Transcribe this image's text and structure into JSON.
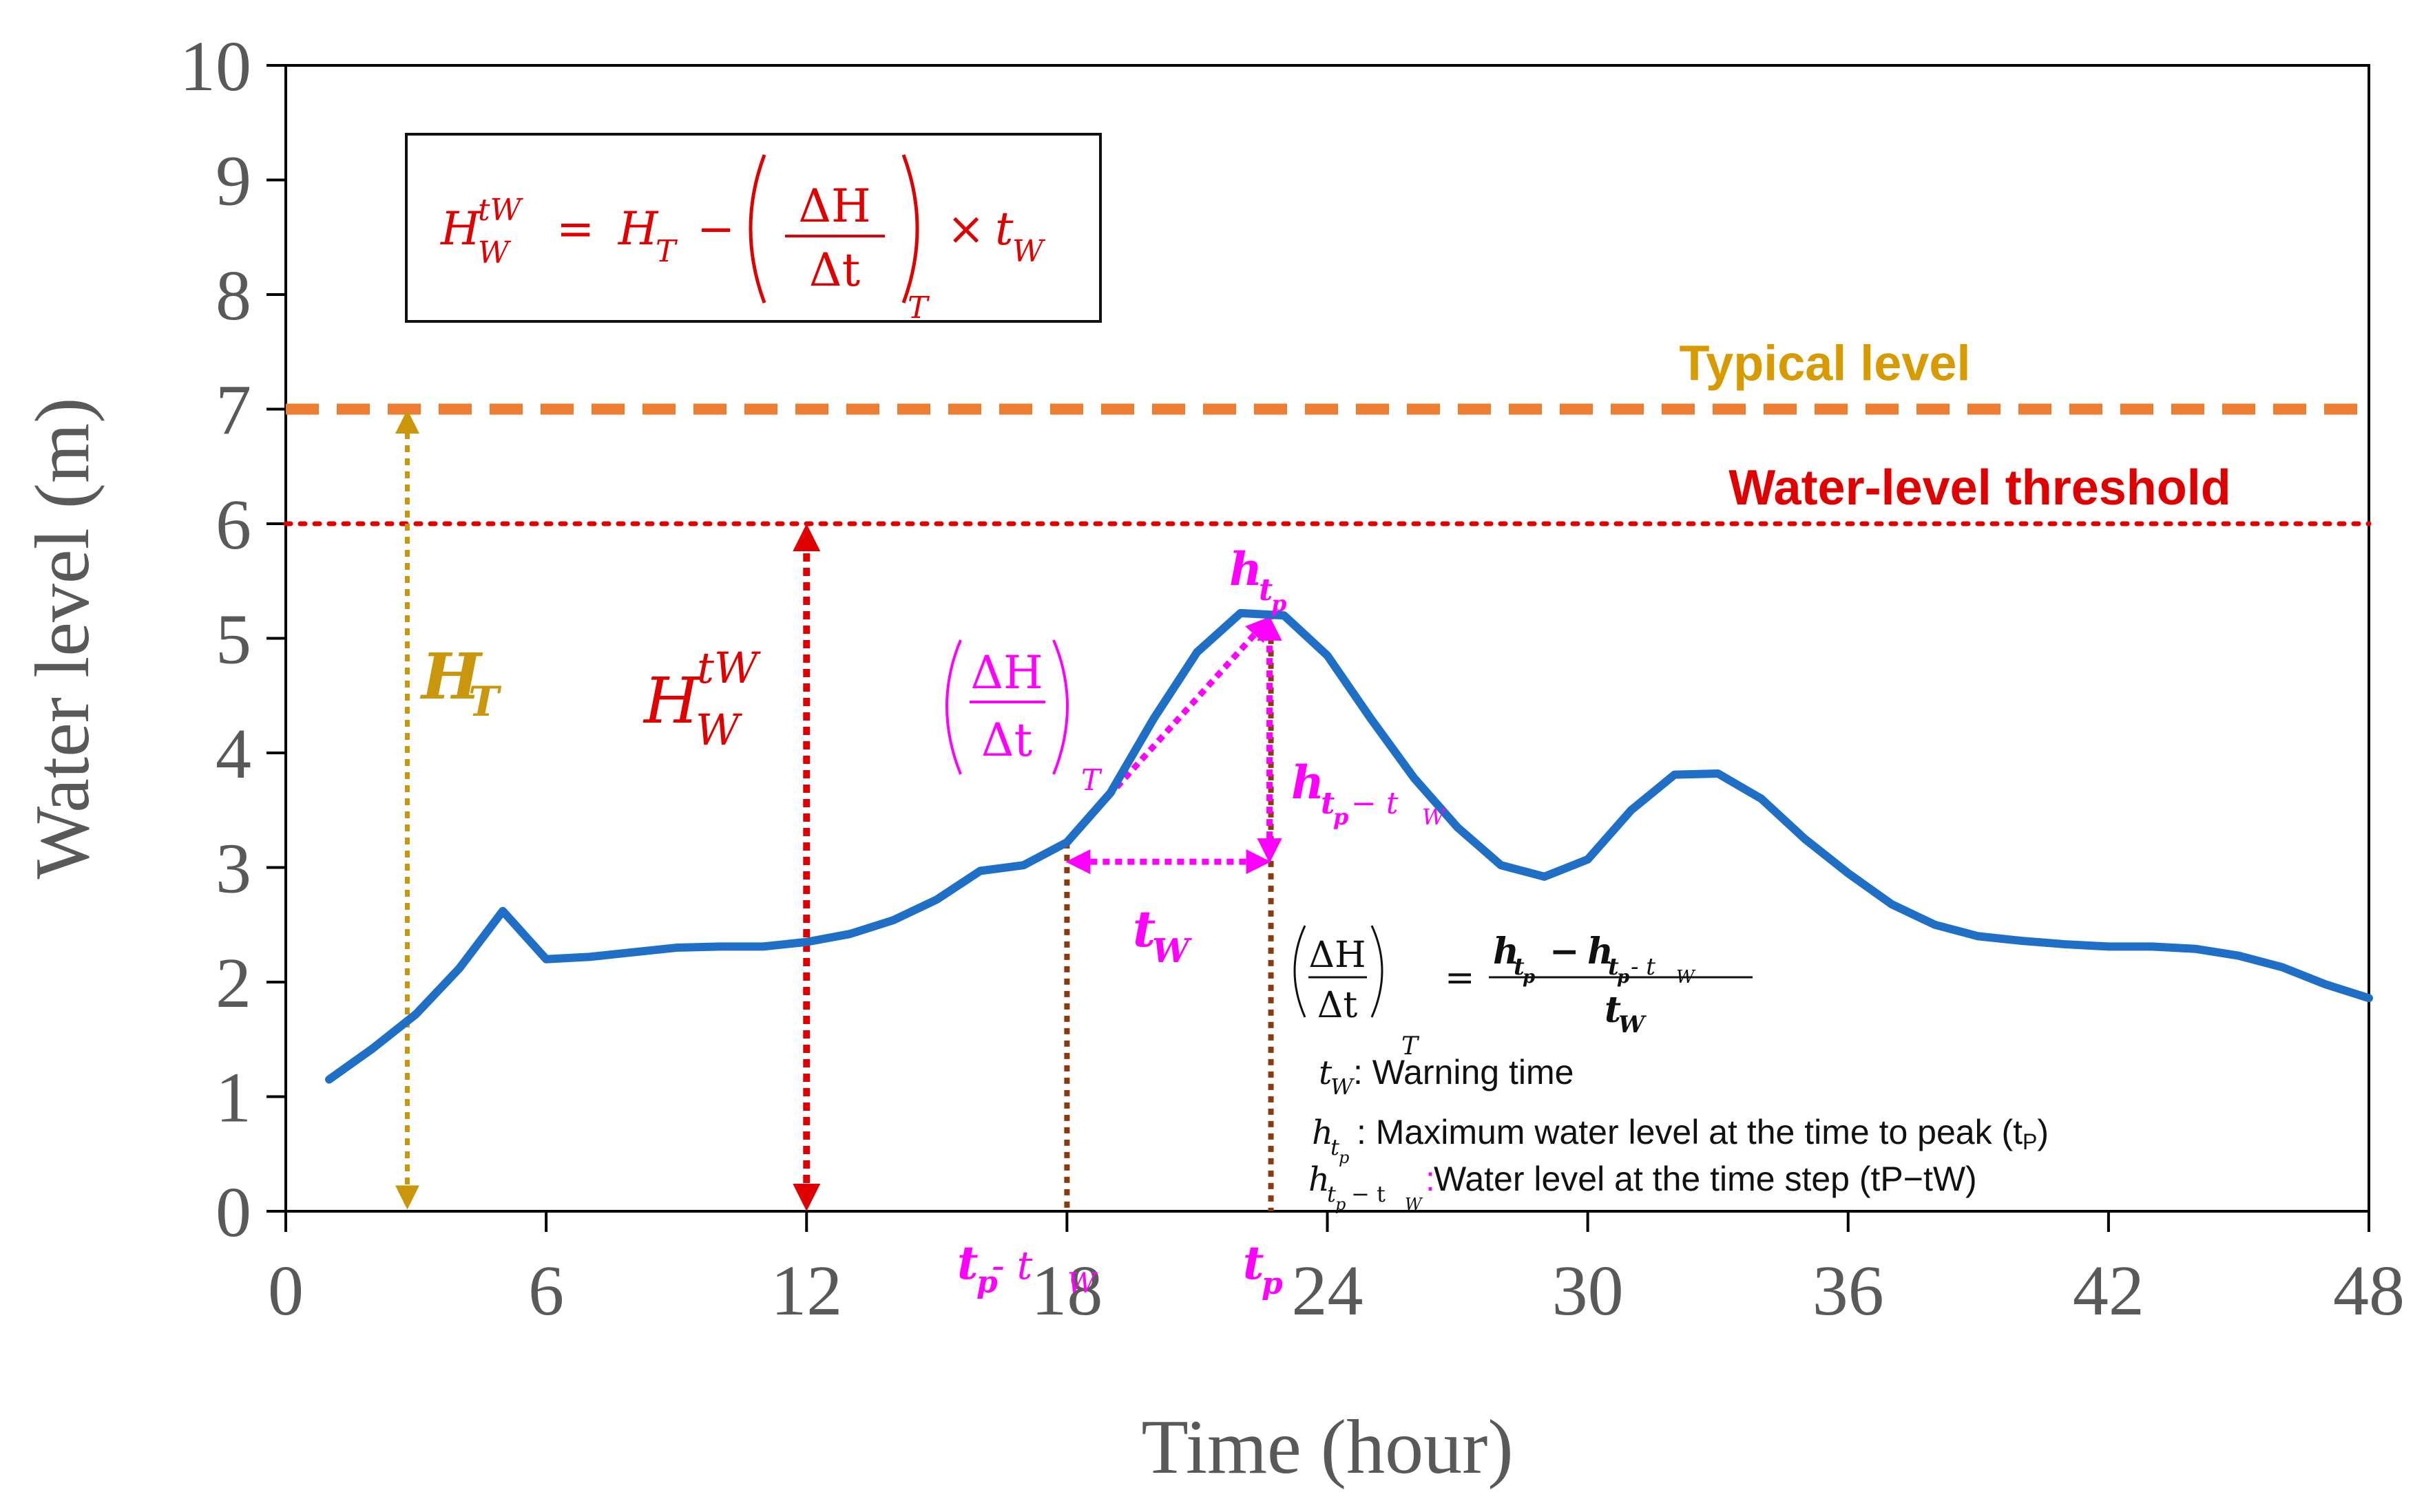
{
  "chart_data": {
    "type": "line",
    "xlabel": "Time (hour)",
    "ylabel": "Water level (m)",
    "xlim": [
      0,
      48
    ],
    "ylim": [
      0,
      10
    ],
    "xticks": [
      "0",
      "6",
      "12",
      "18",
      "24",
      "30",
      "36",
      "42",
      "48"
    ],
    "yticks": [
      "0",
      "1",
      "2",
      "3",
      "4",
      "5",
      "6",
      "7",
      "8",
      "9",
      "10"
    ],
    "series": [
      {
        "name": "Water level",
        "color": "#1f6fc6",
        "x": [
          1,
          2,
          3,
          4,
          5,
          6,
          7,
          8,
          9,
          10,
          11,
          12,
          13,
          14,
          15,
          16,
          17,
          18,
          19,
          20,
          21,
          22,
          23,
          24,
          25,
          26,
          27,
          28,
          29,
          30,
          31,
          32,
          33,
          34,
          35,
          36,
          37,
          38,
          39,
          40,
          41,
          42,
          43,
          44,
          45,
          46,
          47,
          48
        ],
        "values": [
          1.15,
          1.42,
          1.72,
          2.12,
          2.62,
          2.2,
          2.22,
          2.26,
          2.3,
          2.31,
          2.31,
          2.35,
          2.42,
          2.54,
          2.72,
          2.97,
          3.02,
          3.22,
          3.65,
          4.3,
          4.88,
          5.22,
          5.2,
          4.85,
          4.3,
          3.78,
          3.35,
          3.02,
          2.92,
          3.07,
          3.5,
          3.81,
          3.82,
          3.6,
          3.25,
          2.95,
          2.68,
          2.5,
          2.4,
          2.36,
          2.33,
          2.31,
          2.31,
          2.29,
          2.23,
          2.13,
          1.98,
          1.86
        ]
      }
    ],
    "reference_lines": [
      {
        "label": "Typical level",
        "value": 7,
        "color": "#ed7d31",
        "label_color": "#d79b00",
        "style": "dashed"
      },
      {
        "label": "Water-level threshold",
        "value": 6,
        "color": "#e00000",
        "label_color": "#e00000",
        "style": "dotted"
      }
    ],
    "annotations": {
      "HT": {
        "label": "H",
        "sub": "T",
        "x": 2.8,
        "from": 0,
        "to": 7,
        "color": "#c9960c"
      },
      "HW": {
        "label": "H",
        "sub": "W",
        "sup": "tW",
        "x": 12,
        "from": 0,
        "to": 6,
        "color": "#e00000"
      },
      "rate": {
        "x_from": 18,
        "y_from": 3.22,
        "x_to": 22.7,
        "y_to": 5.22,
        "color": "#ff00ff",
        "label_top": "ΔH",
        "label_bottom": "Δt",
        "label_sub": "T"
      },
      "tp": {
        "x": 22.7,
        "label": "t",
        "sub": "p",
        "color": "#ff00ff"
      },
      "tp_minus_tw": {
        "x": 18,
        "label": "t",
        "sub": "p",
        "suffix": "- t",
        "suffix_sub": "W",
        "color": "#ff00ff"
      },
      "tw_span": {
        "x_from": 18,
        "x_to": 22.7,
        "y": 3.05,
        "label": "t",
        "sub": "W",
        "color": "#ff00ff"
      },
      "h_tp": {
        "label": "h",
        "sub": "t",
        "subsub": "p"
      },
      "h_tp_minus_tw": {
        "label": "h",
        "sub": "t",
        "subsub": "p",
        "suffix": "− t",
        "suffix_sub": "W",
        "x": 22.7,
        "from": 3.05,
        "to": 5.22
      },
      "vertical_guides_color": "#8b3a0f",
      "formula_box": {
        "lhs": "H",
        "lhs_sub": "W",
        "lhs_sup": "tW",
        "eq": "=",
        "ht": "H",
        "ht_sub": "T",
        "minus": "−",
        "frac_top": "ΔH",
        "frac_bottom": "Δt",
        "frac_sub": "T",
        "times": "×",
        "tw": "t",
        "tw_sub": "W",
        "color": "#e00000"
      },
      "legend_formula": {
        "frac_top": "ΔH",
        "frac_bottom": "Δt",
        "frac_sub": "T",
        "eq": "=",
        "num": "h",
        "num_sub": "t",
        "num_subsub": "p",
        "minus": "−",
        "num2_suffix": "- t",
        "num2_suffix_sub": "W",
        "den": "t",
        "den_sub": "W"
      },
      "notes": [
        {
          "sym": "t",
          "sub": "W",
          "text": ": Warning time"
        },
        {
          "sym": "h",
          "sub": "t",
          "subsub": "p",
          "text": ": Maximum water level at the time to peak (t",
          "text_sub": "P",
          "text_end": ")"
        },
        {
          "sym": "h",
          "sub": "t",
          "subsub": "p",
          "sub_suffix": "− t",
          "sub_suffix_sub": "W",
          "colon": ":",
          "colon_color": "#ff00ff",
          "text": " Water level at the time step (tP−tW)"
        }
      ]
    }
  }
}
